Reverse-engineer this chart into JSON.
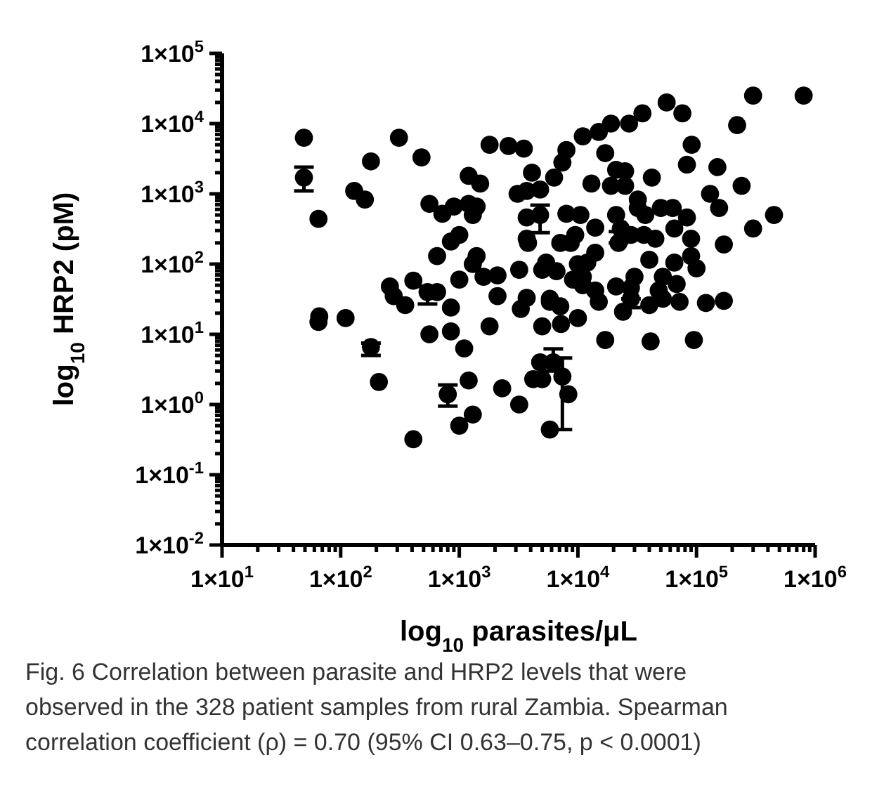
{
  "chart_data": {
    "type": "scatter",
    "xlabel": "log$_{10}$ parasites/μL",
    "ylabel": "log$_{10}$ HRP2 (pM)",
    "log": "xy",
    "marker": "circle",
    "xlim": [
      10,
      1000000
    ],
    "ylim": [
      0.01,
      100000
    ],
    "xticks": [
      {
        "value": 10,
        "label": "1×10$^{1}$"
      },
      {
        "value": 20,
        "label": null
      },
      {
        "value": 30,
        "label": null
      },
      {
        "value": 40,
        "label": null
      },
      {
        "value": 50,
        "label": null
      },
      {
        "value": 60,
        "label": null
      },
      {
        "value": 70,
        "label": null
      },
      {
        "value": 80,
        "label": null
      },
      {
        "value": 90,
        "label": null
      },
      {
        "value": 100,
        "label": "1×10$^{2}$"
      },
      {
        "value": 200,
        "label": null
      },
      {
        "value": 300,
        "label": null
      },
      {
        "value": 400,
        "label": null
      },
      {
        "value": 500,
        "label": null
      },
      {
        "value": 600,
        "label": null
      },
      {
        "value": 700,
        "label": null
      },
      {
        "value": 800,
        "label": null
      },
      {
        "value": 900,
        "label": null
      },
      {
        "value": 1000,
        "label": "1×10$^{3}$"
      },
      {
        "value": 2000,
        "label": null
      },
      {
        "value": 3000,
        "label": null
      },
      {
        "value": 4000,
        "label": null
      },
      {
        "value": 5000,
        "label": null
      },
      {
        "value": 6000,
        "label": null
      },
      {
        "value": 7000,
        "label": null
      },
      {
        "value": 8000,
        "label": null
      },
      {
        "value": 9000,
        "label": null
      },
      {
        "value": 10000,
        "label": "1×10$^{4}$"
      },
      {
        "value": 20000,
        "label": null
      },
      {
        "value": 30000,
        "label": null
      },
      {
        "value": 40000,
        "label": null
      },
      {
        "value": 50000,
        "label": null
      },
      {
        "value": 60000,
        "label": null
      },
      {
        "value": 70000,
        "label": null
      },
      {
        "value": 80000,
        "label": null
      },
      {
        "value": 90000,
        "label": null
      },
      {
        "value": 100000,
        "label": "1×10$^{5}$"
      },
      {
        "value": 200000,
        "label": null
      },
      {
        "value": 300000,
        "label": null
      },
      {
        "value": 400000,
        "label": null
      },
      {
        "value": 500000,
        "label": null
      },
      {
        "value": 600000,
        "label": null
      },
      {
        "value": 700000,
        "label": null
      },
      {
        "value": 800000,
        "label": null
      },
      {
        "value": 900000,
        "label": null
      },
      {
        "value": 1000000,
        "label": "1×10$^{6}$"
      }
    ],
    "yticks": [
      {
        "value": 0.01,
        "label": "1×10$^{-2}$"
      },
      {
        "value": 0.02,
        "label": null
      },
      {
        "value": 0.03,
        "label": null
      },
      {
        "value": 0.04,
        "label": null
      },
      {
        "value": 0.05,
        "label": null
      },
      {
        "value": 0.06,
        "label": null
      },
      {
        "value": 0.07,
        "label": null
      },
      {
        "value": 0.08,
        "label": null
      },
      {
        "value": 0.09,
        "label": null
      },
      {
        "value": 0.1,
        "label": "1×10$^{-1}$"
      },
      {
        "value": 0.2,
        "label": null
      },
      {
        "value": 0.3,
        "label": null
      },
      {
        "value": 0.4,
        "label": null
      },
      {
        "value": 0.5,
        "label": null
      },
      {
        "value": 0.6,
        "label": null
      },
      {
        "value": 0.7,
        "label": null
      },
      {
        "value": 0.8,
        "label": null
      },
      {
        "value": 0.9,
        "label": null
      },
      {
        "value": 1,
        "label": "1×10$^{0}$"
      },
      {
        "value": 2,
        "label": null
      },
      {
        "value": 3,
        "label": null
      },
      {
        "value": 4,
        "label": null
      },
      {
        "value": 5,
        "label": null
      },
      {
        "value": 6,
        "label": null
      },
      {
        "value": 7,
        "label": null
      },
      {
        "value": 8,
        "label": null
      },
      {
        "value": 9,
        "label": null
      },
      {
        "value": 10,
        "label": "1×10$^{1}$"
      },
      {
        "value": 20,
        "label": null
      },
      {
        "value": 30,
        "label": null
      },
      {
        "value": 40,
        "label": null
      },
      {
        "value": 50,
        "label": null
      },
      {
        "value": 60,
        "label": null
      },
      {
        "value": 70,
        "label": null
      },
      {
        "value": 80,
        "label": null
      },
      {
        "value": 90,
        "label": null
      },
      {
        "value": 100,
        "label": "1×10$^{2}$"
      },
      {
        "value": 200,
        "label": null
      },
      {
        "value": 300,
        "label": null
      },
      {
        "value": 400,
        "label": null
      },
      {
        "value": 500,
        "label": null
      },
      {
        "value": 600,
        "label": null
      },
      {
        "value": 700,
        "label": null
      },
      {
        "value": 800,
        "label": null
      },
      {
        "value": 900,
        "label": null
      },
      {
        "value": 1000,
        "label": "1×10$^{3}$"
      },
      {
        "value": 2000,
        "label": null
      },
      {
        "value": 3000,
        "label": null
      },
      {
        "value": 4000,
        "label": null
      },
      {
        "value": 5000,
        "label": null
      },
      {
        "value": 6000,
        "label": null
      },
      {
        "value": 7000,
        "label": null
      },
      {
        "value": 8000,
        "label": null
      },
      {
        "value": 9000,
        "label": null
      },
      {
        "value": 10000,
        "label": "1×10$^{4}$"
      },
      {
        "value": 20000,
        "label": null
      },
      {
        "value": 30000,
        "label": null
      },
      {
        "value": 40000,
        "label": null
      },
      {
        "value": 50000,
        "label": null
      },
      {
        "value": 60000,
        "label": null
      },
      {
        "value": 70000,
        "label": null
      },
      {
        "value": 80000,
        "label": null
      },
      {
        "value": 90000,
        "label": null
      },
      {
        "value": 100000,
        "label": "1×10$^{5}$"
      }
    ],
    "series": [
      {
        "color": "#000000",
        "x": [
          49,
          65,
          130,
          160,
          180,
          310,
          480,
          560,
          720,
          900,
          1200,
          1500,
          1200,
          1400,
          1300,
          1800,
          2600,
          3500,
          4100,
          3100,
          3700,
          3700,
          3700,
          1000,
          850,
          650,
          1400,
          1300,
          1000,
          1600,
          2100,
          3200,
          260,
          280,
          350,
          410,
          650,
          850,
          2100,
          3700,
          3300,
          66,
          110,
          65,
          210,
          410,
          1000,
          1300,
          1200,
          1100,
          850,
          560,
          1800,
          2300,
          3200,
          4200,
          4800,
          5000,
          8300,
          5800,
          5800,
          5000,
          7200,
          10000,
          17000,
          41000,
          95000,
          15000,
          24000,
          40000,
          52000,
          72000,
          120000,
          170000,
          300000,
          800000,
          220000,
          91000,
          83000,
          150000,
          240000,
          130000,
          155000,
          450000,
          300000,
          170000,
          56000,
          76000,
          35000,
          27000,
          19000,
          15000,
          11000,
          8000,
          7400,
          6300,
          17000,
          21000,
          25000,
          19000,
          25000,
          42000,
          13000,
          32000,
          32000,
          50000,
          63000,
          83000,
          65000,
          90000,
          90000,
          100000,
          37000,
          36000,
          45000,
          40000,
          65000,
          52000,
          68000,
          48000,
          21000,
          23000,
          28000,
          30000,
          28000,
          21000,
          14000,
          11000,
          11000,
          9100,
          10000,
          12000,
          14000,
          8700,
          7100,
          9500,
          10500,
          8000,
          14000,
          5400,
          6600,
          5000,
          3800,
          5800,
          7100,
          4800
        ],
        "values": [
          6300,
          440,
          1100,
          830,
          2900,
          6300,
          3300,
          720,
          520,
          660,
          1800,
          1400,
          720,
          660,
          500,
          5000,
          4800,
          4400,
          2000,
          1000,
          1100,
          460,
          230,
          260,
          210,
          130,
          130,
          100,
          60,
          66,
          69,
          83,
          48,
          35,
          26,
          58,
          40,
          24,
          35,
          33,
          23,
          18,
          17,
          15,
          2.1,
          0.32,
          0.5,
          0.72,
          2.2,
          6.3,
          11,
          10,
          13,
          1.7,
          1.0,
          2.3,
          4.0,
          2.3,
          1.4,
          0.44,
          29,
          13,
          14,
          17,
          8.3,
          7.9,
          8.3,
          29,
          21,
          26,
          32,
          29,
          28,
          30,
          25000,
          25000,
          9500,
          5000,
          2600,
          2400,
          1300,
          1000,
          630,
          500,
          320,
          190,
          20000,
          14000,
          14000,
          10000,
          10000,
          7600,
          6600,
          4200,
          2800,
          1700,
          3800,
          2200,
          2100,
          1300,
          1300,
          1700,
          1400,
          830,
          630,
          630,
          630,
          460,
          320,
          230,
          130,
          87,
          500,
          260,
          230,
          115,
          105,
          66,
          52,
          42,
          500,
          320,
          260,
          66,
          46,
          48,
          42,
          50,
          66,
          60,
          100,
          105,
          145,
          200,
          200,
          260,
          500,
          520,
          330,
          105,
          79,
          83,
          200,
          32,
          25,
          1150
        ]
      },
      {
        "color": "#000000",
        "x": [
          49,
          180,
          800,
          540,
          6200,
          7400,
          22000,
          28000,
          4800
        ],
        "values": [
          1700,
          6.6,
          1.4,
          40,
          4.0,
          2.5,
          200,
          32,
          500
        ],
        "errors": [
          [
            1100,
            2400
          ],
          [
            5.0,
            7.5
          ],
          [
            0.95,
            1.9
          ],
          [
            27,
            48
          ],
          [
            3.0,
            6.2
          ],
          [
            0.44,
            4.6
          ],
          [
            200,
            290
          ],
          [
            24,
            32
          ],
          [
            280,
            690
          ]
        ]
      }
    ],
    "annotations": [
      "Fig. 6  Correlation between parasite and HRP2 levels that were observed in the 328 patient samples from rural Zambia. Spearman correlation coefficient (ρ) = 0.70 (95% CI 0.63–0.75, p < 0.0001)"
    ]
  }
}
